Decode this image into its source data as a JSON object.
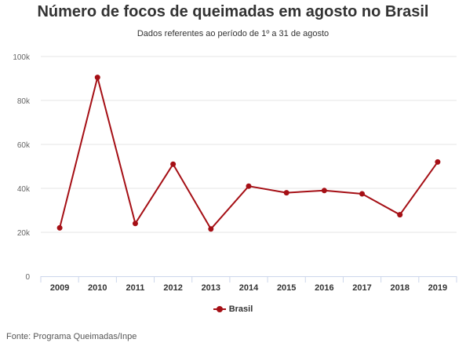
{
  "chart_data": {
    "type": "line",
    "title": "Número de focos de queimadas em agosto no Brasil",
    "subtitle": "Dados referentes ao período de 1º a 31 de agosto",
    "xlabel": "",
    "ylabel": "",
    "categories": [
      "2009",
      "2010",
      "2011",
      "2012",
      "2013",
      "2014",
      "2015",
      "2016",
      "2017",
      "2018",
      "2019"
    ],
    "series": [
      {
        "name": "Brasil",
        "color": "#a50f15",
        "values": [
          22000,
          90500,
          24000,
          51000,
          21500,
          41000,
          38000,
          39000,
          37500,
          28000,
          52000
        ]
      }
    ],
    "ylim": [
      0,
      100000
    ],
    "yticks": [
      0,
      20000,
      40000,
      60000,
      80000,
      100000
    ],
    "ytick_labels": [
      "0",
      "20k",
      "40k",
      "60k",
      "80k",
      "100k"
    ],
    "grid": "horizontal",
    "legend": "bottom-center"
  },
  "source": "Fonte: Programa Queimadas/Inpe"
}
